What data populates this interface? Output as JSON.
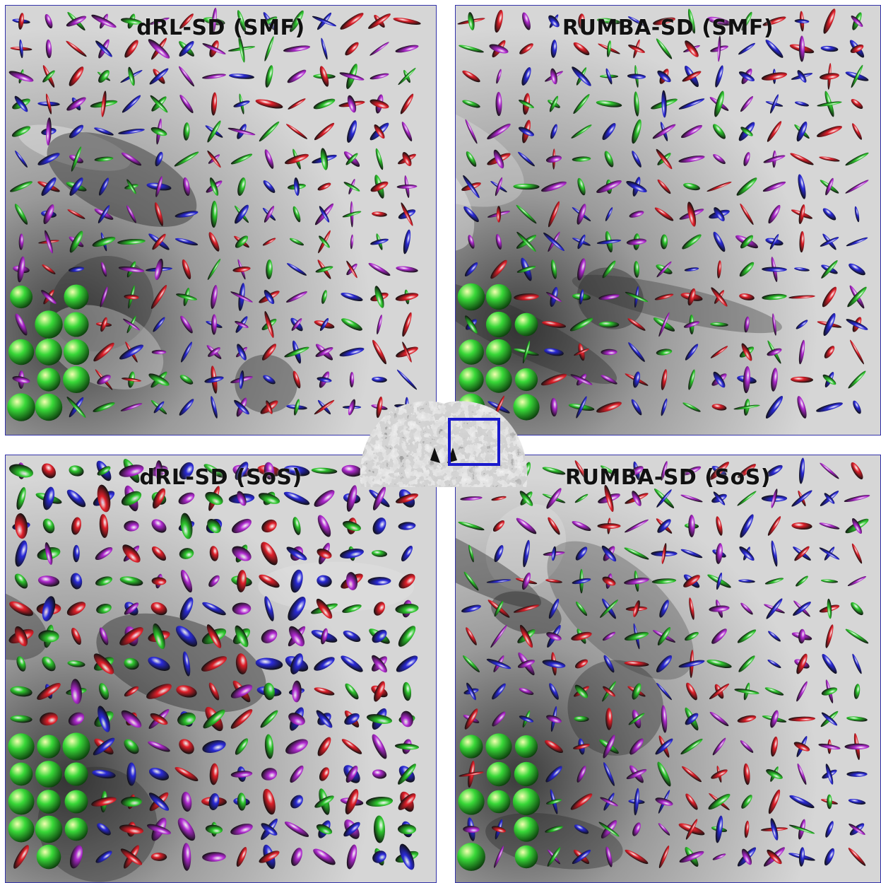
{
  "panels": [
    {
      "id": "p-tl",
      "title": "dRL-SD (SMF)"
    },
    {
      "id": "p-tr",
      "title": "RUMBA-SD (SMF)"
    },
    {
      "id": "p-bl",
      "title": "dRL-SD (SoS)"
    },
    {
      "id": "p-br",
      "title": "RUMBA-SD (SoS)"
    }
  ],
  "colors": {
    "panel_border": "#3333aa",
    "roi_box": "#1a1acc",
    "glyph_red": "#e0202a",
    "glyph_green": "#2ec82e",
    "glyph_blue": "#2a2ad8",
    "glyph_magenta": "#b02ad0"
  }
}
